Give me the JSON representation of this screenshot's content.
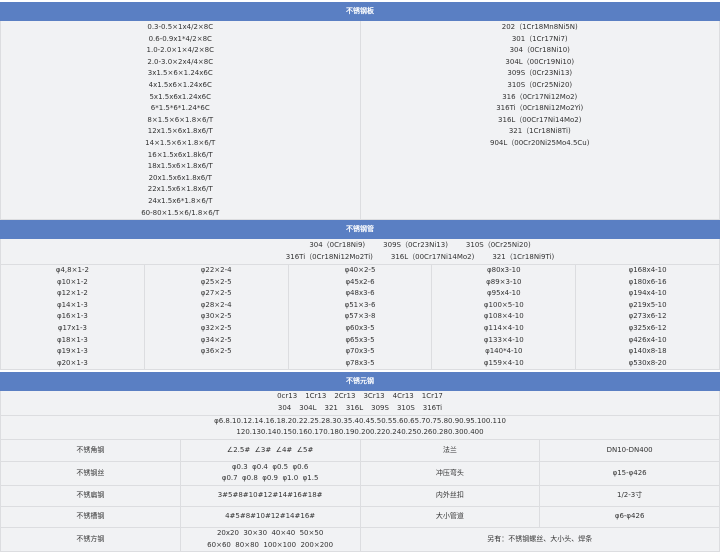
{
  "plate": {
    "title": "不锈钢板",
    "sizes": [
      "0.3-0.5×1x4/2×8C",
      "0.6-0.9x1*4/2×8C",
      "1.0-2.0×1×4/2×8C",
      "2.0-3.0×2x4/4×8C",
      "3x1.5×6×1.24x6C",
      "4x1.5x6×1.24x6C",
      "5x1.5x6x1.24x6C",
      "6*1.5*6*1.24*6C",
      "8×1.5×6×1.8×6/T",
      "12x1.5×6x1.8x6/T",
      "14×1.5×6×1.8×6/T",
      "16×1.5x6x1.8k6/T",
      "18x1.5x6×1.8x6/T",
      "20x1.5x6x1.8x6/T",
      "22x1.5x6×1.8x6/T",
      "24x1.5x6*1.8×6/T",
      "60-80×1.5×6/1.8×6/T"
    ],
    "grades": [
      "202（1Cr18Mn8Ni5N)",
      "301（1Cr17Ni7)",
      "304（0Cr18Ni10)",
      "304L（00Cr19Ni10)",
      "309S（0Cr23Ni13)",
      "310S（0Cr25Ni20)",
      "316（0Cr17Ni12Mo2)",
      "316Ti（0Cr18Ni12Mo2Yi)",
      "316L（00Cr17Ni14Mo2)",
      "321（1Cr18Ni8Ti)",
      "904L（00Cr20Ni25Mo4.5Cu)"
    ]
  },
  "pipe": {
    "title": "不锈钢管",
    "grades_row1": [
      "304（0Cr18Ni9)",
      "309S（0Cr23Ni13)",
      "310S（0Cr25Ni20)"
    ],
    "grades_row2": [
      "316Ti（0Cr18Ni12Mo2Ti)",
      "316L（00Cr17Ni14Mo2)",
      "321（1Cr18Ni9Ti)"
    ],
    "columns": [
      [
        "φ4,8×1-2",
        "φ10×1-2",
        "φ12×1-2",
        "φ14×1-3",
        "φ16×1-3",
        "φ17x1-3",
        "φ18×1-3",
        "φ19×1-3",
        "φ20×1-3"
      ],
      [
        "φ22×2-4",
        "φ25×2-5",
        "φ27×2-5",
        "φ28×2-4",
        "φ30×2-5",
        "φ32×2-5",
        "φ34×2-5",
        "φ36×2-5"
      ],
      [
        "φ40×2-5",
        "φ45x2-6",
        "φ48x3-6",
        "φ51×3-6",
        "φ57×3-8",
        "φ60x3-5",
        "φ65x3-5",
        "φ70x3-5",
        "φ78x3-5"
      ],
      [
        "φ80x3-10",
        "φ89×3-10",
        "φ95x4-10",
        "φ100×5-10",
        "φ108×4-10",
        "φ114×4-10",
        "φ133×4-10",
        "φ140*4-10",
        "φ159×4-10"
      ],
      [
        "φ168x4-10",
        "φ180x6-16",
        "φ194x4-10",
        "φ219x5-10",
        "φ273x6-12",
        "φ325x6-12",
        "φ426x4-10",
        "φ140x8-18",
        "φ530x8-20"
      ]
    ]
  },
  "bar": {
    "title": "不锈元钢",
    "grades_row1": [
      "0cr13",
      "1Cr13",
      "2Cr13",
      "3Cr13",
      "4Cr13",
      "1Cr17"
    ],
    "grades_row2": [
      "304",
      "304L",
      "321",
      "316L",
      "309S",
      "310S",
      "316Ti"
    ],
    "diam1": "φ6.8.10.12.14.16.18.20.22.25.28.30.35.40.45.50.55.60.65.70.75.80.90.95.100.110",
    "diam2": "120.130.140.150.160.170.180.190.200.220.240.250.260.280.300.400",
    "rows": [
      {
        "label": "不锈角钢",
        "lines": [
          "∠2.5#  ∠3#  ∠4#  ∠5#"
        ],
        "label2": "法兰",
        "value2": "DN10-DN400"
      },
      {
        "label": "不锈钢丝",
        "lines": [
          "φ0.3  φ0.4  φ0.5  φ0.6",
          "φ0.7  φ0.8  φ0.9  φ1.0  φ1.5"
        ],
        "label2": "冲压弯头",
        "value2": "φ15-φ426"
      },
      {
        "label": "不锈扁钢",
        "lines": [
          "3#5#8#10#12#14#16#18#"
        ],
        "label2": "内外丝扣",
        "value2": "1/2-3寸"
      },
      {
        "label": "不锈槽钢",
        "lines": [
          "4#5#8#10#12#14#16#"
        ],
        "label2": "大小管道",
        "value2": "φ6-φ426"
      },
      {
        "label": "不锈方钢",
        "lines": [
          "20x20  30×30  40×40  50×50",
          "60×60  80×80  100×100  200×200"
        ],
        "note": "另有：不锈钢螺丝、大小头、焊条"
      }
    ]
  },
  "colors": {
    "header": "#5a7fc3",
    "cell": "#f1f2f4"
  }
}
